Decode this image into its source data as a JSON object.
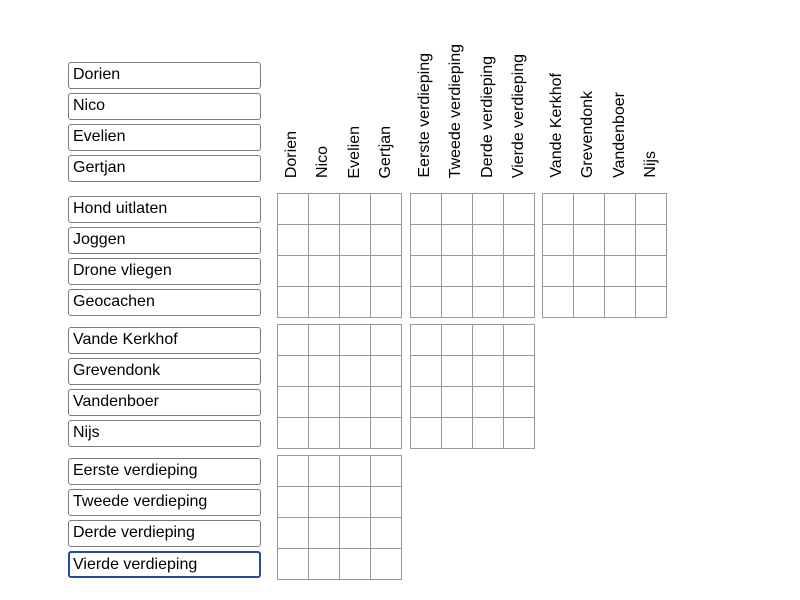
{
  "row_groups": [
    [
      "Dorien",
      "Nico",
      "Evelien",
      "Gertjan"
    ],
    [
      "Hond uitlaten",
      "Joggen",
      "Drone vliegen",
      "Geocachen"
    ],
    [
      "Vande Kerkhof",
      "Grevendonk",
      "Vandenboer",
      "Nijs"
    ],
    [
      "Eerste verdieping",
      "Tweede verdieping",
      "Derde verdieping",
      "Vierde verdieping"
    ]
  ],
  "column_groups": [
    [
      "Dorien",
      "Nico",
      "Evelien",
      "Gertjan"
    ],
    [
      "Eerste verdieping",
      "Tweede verdieping",
      "Derde verdieping",
      "Vierde verdieping"
    ],
    [
      "Vande Kerkhof",
      "Grevendonk",
      "Vandenboer",
      "Nijs"
    ]
  ],
  "focused_field": "Vierde verdieping",
  "colors": {
    "grid_line": "#999999",
    "field_border": "#7a7a7a",
    "focus_border": "#1f4fa0"
  }
}
